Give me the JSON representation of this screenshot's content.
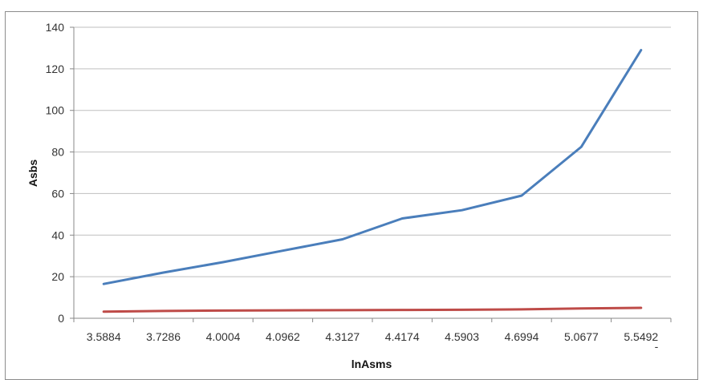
{
  "chart_data": {
    "type": "line",
    "title": "",
    "xlabel": "lnAsms",
    "ylabel": "Asbs",
    "categories": [
      "3.5884",
      "3.7286",
      "4.0004",
      "4.0962",
      "4.3127",
      "4.4174",
      "4.5903",
      "4.6994",
      "5.0677",
      "5.5492"
    ],
    "series": [
      {
        "color": "#4a7ebb",
        "values": [
          16.5,
          22,
          27,
          32.5,
          38,
          48,
          52,
          59,
          82.5,
          129
        ]
      },
      {
        "color": "#be4b48",
        "values": [
          3.2,
          3.5,
          3.7,
          3.8,
          3.9,
          4.0,
          4.1,
          4.3,
          4.7,
          5.0
        ]
      }
    ],
    "ylim": [
      0,
      140
    ],
    "yticks": [
      0,
      20,
      40,
      60,
      80,
      100,
      120,
      140
    ],
    "grid": true,
    "legend": "none",
    "gridline_color": "#bfbfbf",
    "axis_color": "#888888"
  }
}
